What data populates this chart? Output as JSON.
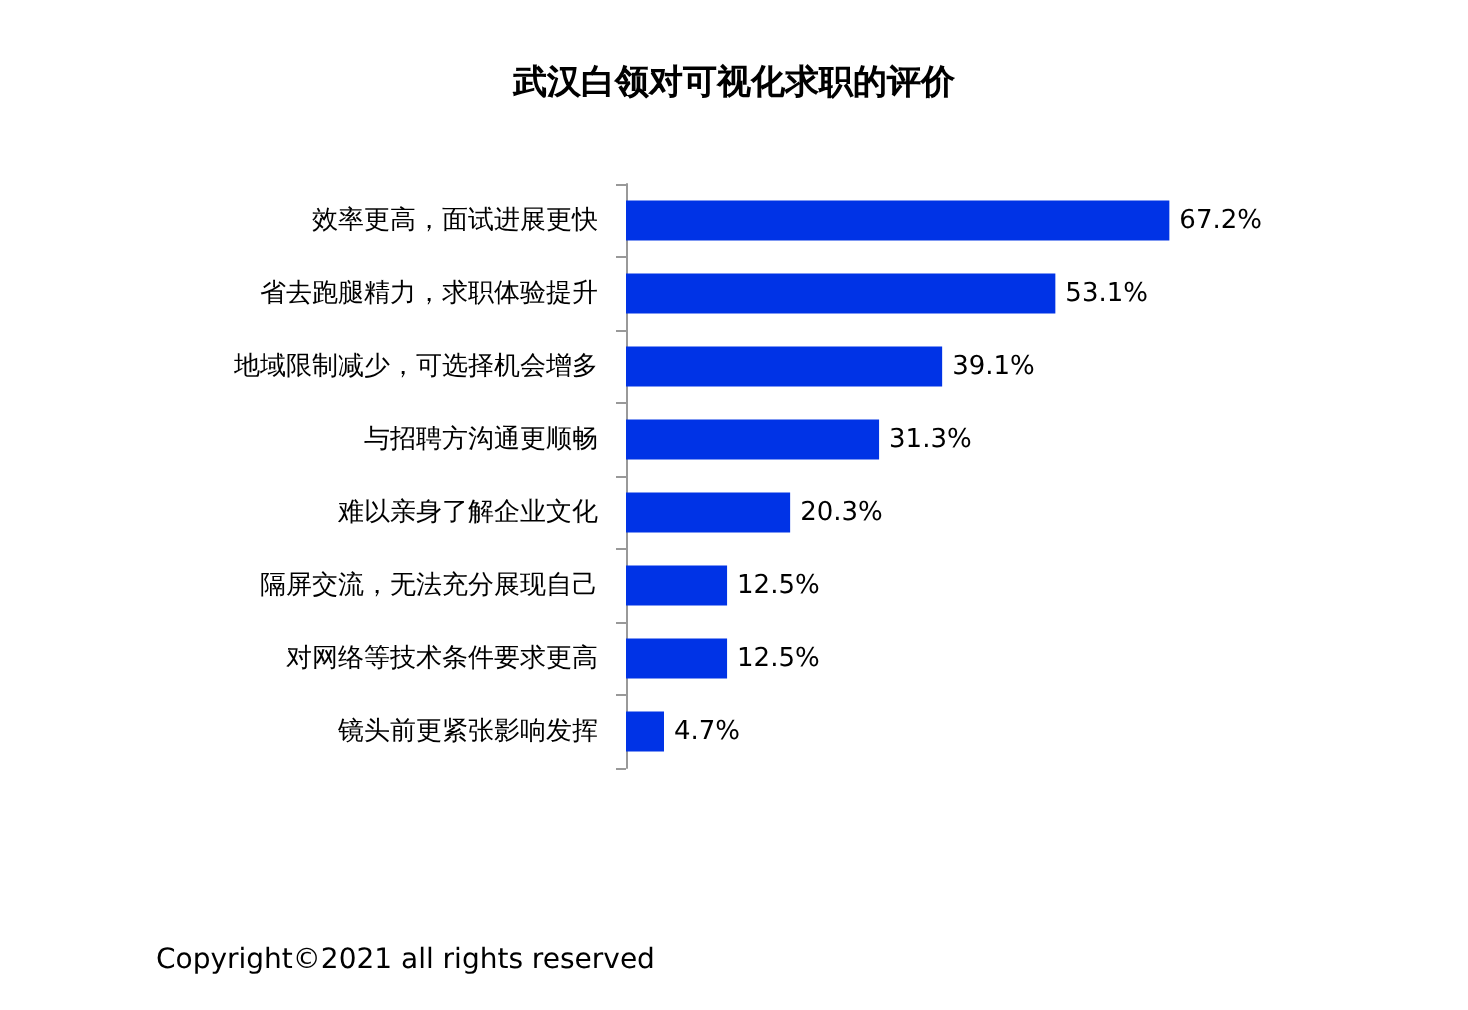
{
  "chart_data": {
    "type": "bar",
    "orientation": "horizontal",
    "title": "武汉白领对可视化求职的评价",
    "categories": [
      "效率更高，面试进展更快",
      "省去跑腿精力，求职体验提升",
      "地域限制减少，可选择机会增多",
      "与招聘方沟通更顺畅",
      "难以亲身了解企业文化",
      "隔屏交流，无法充分展现自己",
      "对网络等技术条件要求更高",
      "镜头前更紧张影响发挥"
    ],
    "values": [
      67.2,
      53.1,
      39.1,
      31.3,
      20.3,
      12.5,
      12.5,
      4.7
    ],
    "value_labels": [
      "67.2%",
      "53.1%",
      "39.1%",
      "31.3%",
      "20.3%",
      "12.5%",
      "12.5%",
      "4.7%"
    ],
    "color": "#0033e6",
    "annotations": [
      "Copyright©2021 all rights reserved"
    ]
  }
}
